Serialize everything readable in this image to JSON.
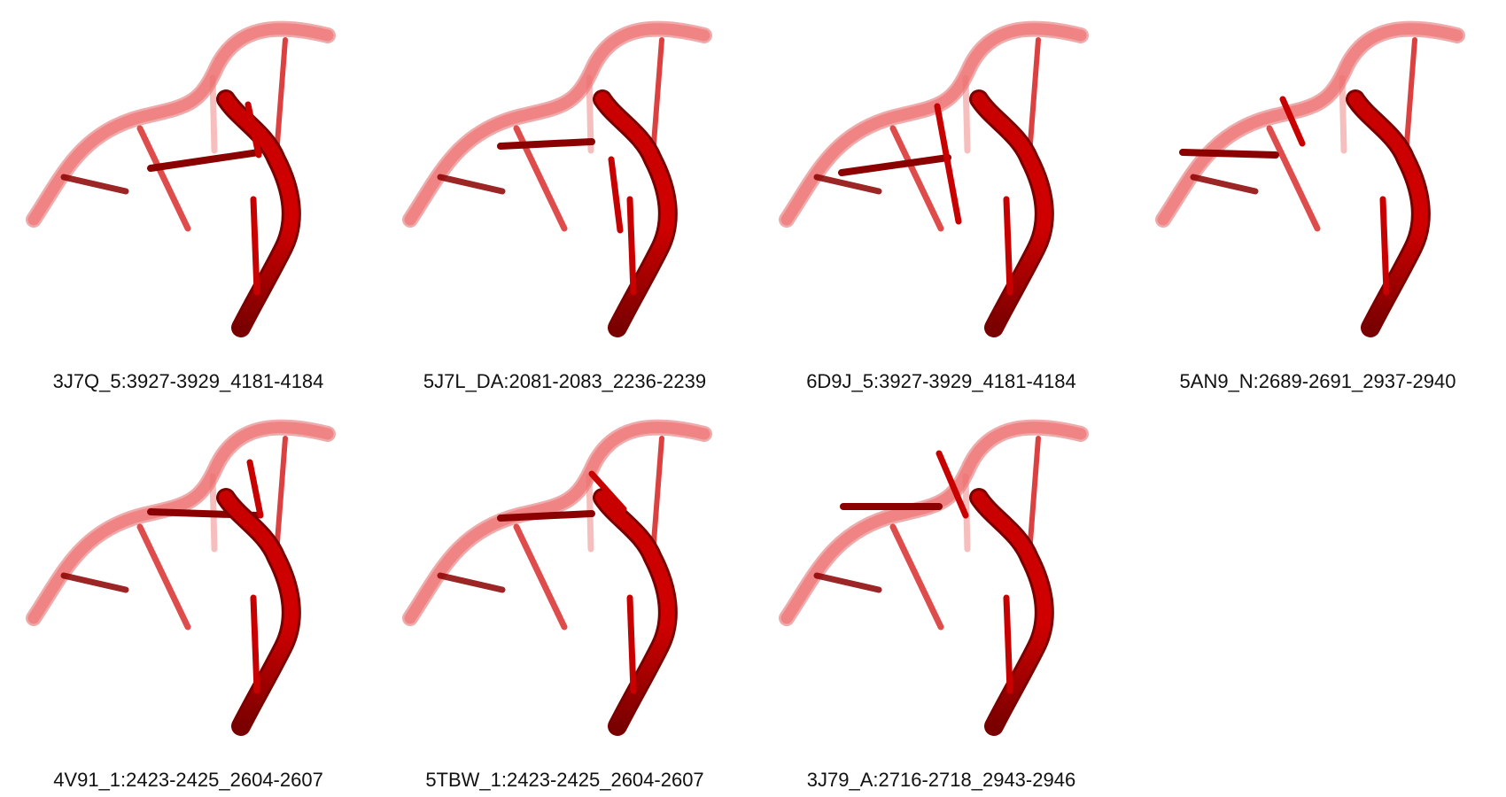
{
  "colors": {
    "backbone_light": "#f08080",
    "backbone_light_edge": "#e06666",
    "backbone_dark": "#c80000",
    "backbone_dark_edge": "#7a0000",
    "rung_dark": "#8b0000",
    "rung_mid": "#d62020",
    "rung_light": "#ef7070",
    "caption_text": "#111111"
  },
  "panels": [
    {
      "label": "3J7Q_5:3927-3929_4181-4184"
    },
    {
      "label": "5J7L_DA:2081-2083_2236-2239"
    },
    {
      "label": "6D9J_5:3927-3929_4181-4184"
    },
    {
      "label": "5AN9_N:2689-2691_2937-2940"
    },
    {
      "label": "4V91_1:2423-2425_2604-2607"
    },
    {
      "label": "5TBW_1:2423-2425_2604-2607"
    },
    {
      "label": "3J79_A:2716-2718_2943-2946"
    }
  ]
}
